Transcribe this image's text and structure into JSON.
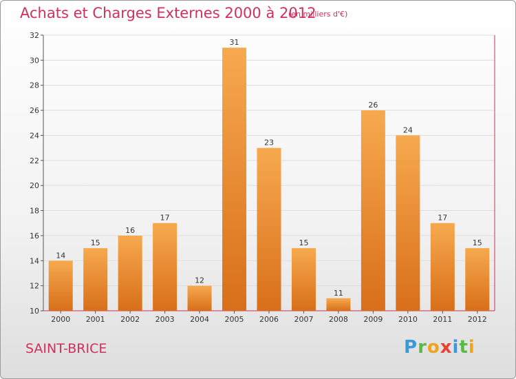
{
  "title": "Achats et Charges Externes 2000 à 2012",
  "subtitle": "(en milliers d'€)",
  "commune": "SAINT-BRICE",
  "logo": {
    "p": "P",
    "r": "r",
    "o": "o",
    "x": "x",
    "i": "i",
    "t": "t",
    "i2": "i"
  },
  "colors": {
    "bar": "#f0952f",
    "bar_dark": "#d9761f",
    "axis_line": "#c8305a",
    "grid": "#dddddd",
    "title": "#d0305a"
  },
  "chart_data": {
    "type": "bar",
    "categories": [
      "2000",
      "2001",
      "2002",
      "2003",
      "2004",
      "2005",
      "2006",
      "2007",
      "2008",
      "2009",
      "2010",
      "2011",
      "2012"
    ],
    "values": [
      14,
      15,
      16,
      17,
      12,
      31,
      23,
      15,
      11,
      26,
      24,
      17,
      15
    ],
    "ylim": [
      10,
      32
    ],
    "yticks": [
      "10",
      "12",
      "14",
      "16",
      "18",
      "20",
      "22",
      "24",
      "26",
      "28",
      "30",
      "32"
    ],
    "grid": true
  }
}
